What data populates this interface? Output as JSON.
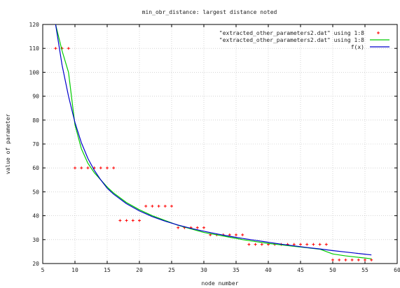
{
  "chart_data": {
    "type": "scatter",
    "title": "min_obr_distance:  largest distance noted",
    "xlabel": "node number",
    "ylabel": "value of parameter",
    "xlim": [
      5,
      60
    ],
    "ylim": [
      20,
      120
    ],
    "xticks": [
      5,
      10,
      15,
      20,
      25,
      30,
      35,
      40,
      45,
      50,
      55,
      60
    ],
    "yticks": [
      20,
      30,
      40,
      50,
      60,
      70,
      80,
      90,
      100,
      110,
      120
    ],
    "grid": true,
    "legend_position": "top-right",
    "series": [
      {
        "name": "\"extracted_other_parameters2.dat\" using 1:8",
        "style": "points",
        "color": "#ff0000",
        "x": [
          7,
          8,
          9,
          10,
          11,
          12,
          13,
          14,
          15,
          16,
          17,
          18,
          19,
          20,
          21,
          22,
          23,
          24,
          25,
          26,
          27,
          28,
          29,
          30,
          31,
          32,
          33,
          34,
          35,
          36,
          37,
          38,
          39,
          40,
          41,
          42,
          43,
          44,
          45,
          46,
          47,
          48,
          49,
          50,
          51,
          52,
          53,
          54,
          55,
          56
        ],
        "y": [
          110,
          110,
          110,
          60,
          60,
          60,
          60,
          60,
          60,
          60,
          38,
          38,
          38,
          38,
          44,
          44,
          44,
          44,
          44,
          35,
          35,
          35,
          35,
          35,
          32,
          32,
          32,
          32,
          32,
          32,
          28,
          28,
          28,
          28,
          28,
          28,
          28,
          28,
          28,
          28,
          28,
          28,
          28,
          21.5,
          21.5,
          21.5,
          21.5,
          21.5,
          21.5,
          21.5
        ]
      },
      {
        "name": "\"extracted_other_parameters2.dat\" using 1:8",
        "style": "lines",
        "color": "#00cc00",
        "x": [
          7,
          8,
          9,
          10,
          11,
          12,
          13,
          14,
          15,
          16,
          18,
          20,
          22,
          24,
          26,
          28,
          30,
          32,
          34,
          36,
          38,
          40,
          42,
          44,
          46,
          48,
          50,
          52,
          54,
          56
        ],
        "y": [
          120,
          109,
          100,
          78,
          68,
          62,
          58,
          55,
          52,
          49.5,
          45.5,
          42.5,
          40,
          38,
          36,
          34.5,
          33,
          32,
          31,
          30,
          29.2,
          28.4,
          27.8,
          27.2,
          26.6,
          26,
          24,
          23.2,
          22.6,
          22
        ]
      },
      {
        "name": "f(x)",
        "style": "lines",
        "color": "#0000cc",
        "x": [
          7,
          8,
          9,
          10,
          11,
          12,
          13,
          14,
          15,
          16,
          18,
          20,
          22,
          24,
          26,
          28,
          30,
          32,
          34,
          36,
          38,
          40,
          42,
          44,
          46,
          48,
          50,
          52,
          54,
          56
        ],
        "y": [
          120,
          103,
          90,
          79,
          70.5,
          64,
          59,
          55,
          51.5,
          49,
          45,
          42,
          39.6,
          37.7,
          36.1,
          34.7,
          33.5,
          32.4,
          31.4,
          30.5,
          29.7,
          28.9,
          28.1,
          27.4,
          26.7,
          26.1,
          25.4,
          24.8,
          24.2,
          23.6
        ]
      }
    ]
  }
}
